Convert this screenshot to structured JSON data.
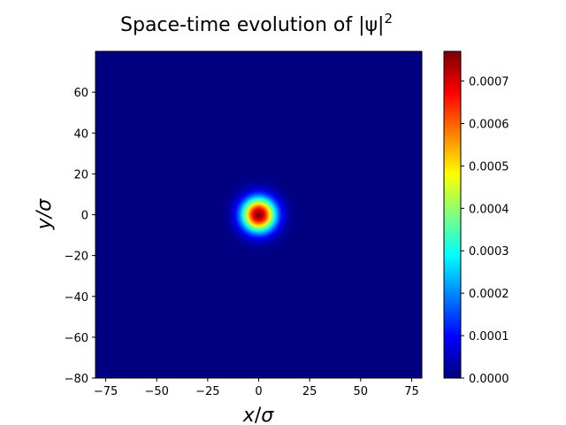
{
  "chart_data": {
    "type": "heatmap",
    "title": "Space-time evolution of |ψ|",
    "title_superscript": "2",
    "xlabel_var": "x",
    "xlabel_unit": "σ",
    "xlabel_sep": "/",
    "ylabel": "y/σ",
    "xlim": [
      -80,
      80
    ],
    "ylim": [
      -80,
      80
    ],
    "xticks": [
      -75,
      -50,
      -25,
      0,
      25,
      50,
      75
    ],
    "xtick_labels": [
      "−75",
      "−50",
      "−25",
      "0",
      "25",
      "50",
      "75"
    ],
    "yticks": [
      60,
      40,
      20,
      0,
      -20,
      -40,
      -60,
      -80
    ],
    "ytick_labels": [
      "60",
      "40",
      "20",
      "0",
      "−20",
      "−40",
      "−60",
      "−80"
    ],
    "colormap": "jet",
    "colorbar": {
      "min": 0,
      "max": 0.00077,
      "ticks": [
        0,
        0.0001,
        0.0002,
        0.0003,
        0.0004,
        0.0005,
        0.0006,
        0.0007
      ],
      "tick_labels": [
        "0.0000",
        "0.0001",
        "0.0002",
        "0.0003",
        "0.0004",
        "0.0005",
        "0.0006",
        "0.0007"
      ]
    },
    "data": {
      "distribution": "gaussian",
      "center": [
        0,
        0
      ],
      "peak": 0.00077,
      "sigma": 5.7
    },
    "grid": false,
    "colors": {
      "background_min": "#00007f",
      "peak": "#7f0000",
      "axis": "#000000"
    }
  }
}
